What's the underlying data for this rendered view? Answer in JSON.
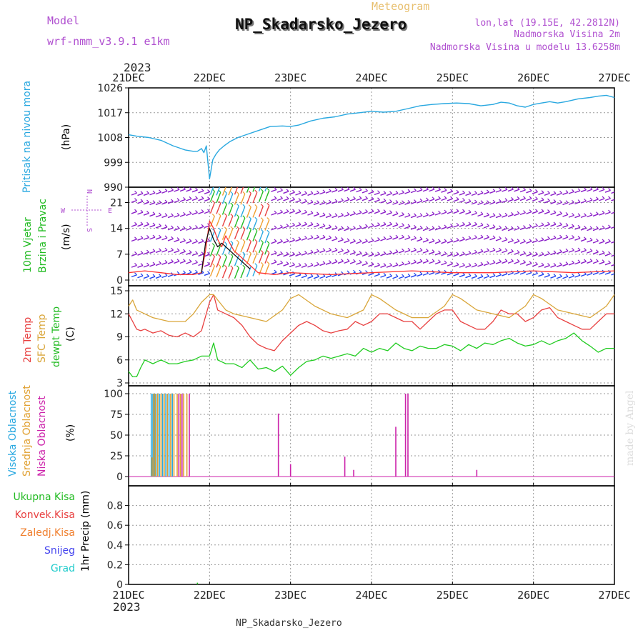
{
  "header": {
    "model_label": "Model",
    "model_name": "wrf-nmm_v3.9.1  e1km",
    "meteogram_label": "Meteogram",
    "station_title": "NP_Skadarsko_Jezero",
    "lonlat": "lon,lat (19.15E, 42.2812N)",
    "altitude": "Nadmorska Visina 2m",
    "model_altitude": "Nadmorska Visina u modelu 13.6258m",
    "year_top": "2023",
    "year_bottom": "2023",
    "footer_station": "NP_Skadarsko_Jezero",
    "credit": "made by Angel"
  },
  "colors": {
    "pressure": "#29a8e0",
    "wind_label": "#22bb22",
    "wind_arrow": "#8a1ec8",
    "wind_speed": "#ff3333",
    "t2m": "#e84040",
    "sfc": "#d9a63a",
    "dewpt": "#22cc22",
    "cloud_high": "#29a8e0",
    "cloud_mid": "#e0a030",
    "cloud_low": "#cc22aa",
    "precip_total": "#22bb22",
    "precip_conv": "#e84040",
    "precip_frozen": "#f08030",
    "snow": "#4444ee",
    "hail": "#22cccc",
    "title_purple": "#b050d0",
    "meteogram_gold": "#e8c070"
  },
  "chart_data": [
    {
      "type": "line",
      "panel": "pressure",
      "labels": [
        "Pritisak na nivou mora",
        "(hPa)"
      ],
      "x_ticks": [
        "21DEC",
        "22DEC",
        "23DEC",
        "24DEC",
        "25DEC",
        "26DEC",
        "27DEC"
      ],
      "x_days": [
        0,
        6
      ],
      "ylim": [
        990,
        1026
      ],
      "y_ticks": [
        "990",
        "999",
        "1008",
        "1017",
        "1026"
      ],
      "grid": true,
      "series": [
        {
          "x": [
            0,
            0.1,
            0.25,
            0.4,
            0.55,
            0.7,
            0.8,
            0.85,
            0.9,
            0.93,
            0.96,
            1.0,
            1.04,
            1.08,
            1.12,
            1.18,
            1.25,
            1.35,
            1.45,
            1.6,
            1.75,
            1.9,
            2.0,
            2.1,
            2.25,
            2.4,
            2.55,
            2.7,
            2.85,
            3.0,
            3.15,
            3.3,
            3.45,
            3.6,
            3.75,
            3.9,
            4.05,
            4.2,
            4.35,
            4.5,
            4.6,
            4.7,
            4.8,
            4.9,
            5.0,
            5.1,
            5.2,
            5.3,
            5.4,
            5.55,
            5.7,
            5.8,
            5.9,
            6.0
          ],
          "values": [
            1009,
            1008.5,
            1008,
            1007,
            1005,
            1003.5,
            1003,
            1003,
            1004,
            1002.5,
            1005,
            993,
            1000,
            1002,
            1003.5,
            1005,
            1006.5,
            1008,
            1009,
            1010.5,
            1012,
            1012.2,
            1012,
            1012.5,
            1014,
            1015,
            1015.5,
            1016.5,
            1017,
            1017.5,
            1017.2,
            1017.5,
            1018.5,
            1019.5,
            1020,
            1020.3,
            1020.5,
            1020.3,
            1019.5,
            1020,
            1020.8,
            1020.5,
            1019.5,
            1019,
            1020,
            1020.5,
            1021,
            1020.5,
            1021,
            1022,
            1022.5,
            1023,
            1023.3,
            1022.5
          ]
        }
      ]
    },
    {
      "type": "line",
      "panel": "wind",
      "labels": [
        "10m Vjetar",
        "Brzina i Pravac",
        "(m/s)"
      ],
      "direction_legend": [
        "N",
        "S",
        "W",
        "E"
      ],
      "ylim": [
        0,
        24
      ],
      "y_ticks": [
        "0",
        "7",
        "14",
        "21"
      ],
      "grid": true,
      "series": [
        {
          "name": "speed",
          "x": [
            0,
            0.2,
            0.4,
            0.6,
            0.8,
            0.9,
            0.95,
            1.0,
            1.05,
            1.1,
            1.15,
            1.2,
            1.3,
            1.4,
            1.5,
            1.6,
            1.8,
            2.0,
            2.5,
            3.0,
            3.5,
            4.0,
            4.5,
            5.0,
            5.5,
            6.0
          ],
          "values": [
            2,
            2.5,
            2,
            1.5,
            1.5,
            2,
            8,
            16,
            14,
            11,
            9,
            12,
            8,
            6,
            4,
            2,
            1.5,
            2,
            1.5,
            2,
            2.5,
            2,
            2,
            2.5,
            2,
            2.5
          ]
        },
        {
          "name": "gust",
          "x": [
            0.9,
            0.95,
            1.0,
            1.05,
            1.1,
            1.15,
            1.2,
            1.3,
            1.4,
            1.5
          ],
          "values": [
            2,
            10,
            14,
            11,
            9,
            10,
            9,
            7,
            5,
            3
          ]
        }
      ]
    },
    {
      "type": "line",
      "panel": "temperature",
      "labels": [
        "2m Temp",
        "SFC Temp",
        "dewpt Temp",
        "(C)"
      ],
      "ylim": [
        3,
        15
      ],
      "y_ticks": [
        "3",
        "6",
        "9",
        "12",
        "15"
      ],
      "grid": true,
      "series": [
        {
          "name": "2m Temp",
          "x": [
            0,
            0.05,
            0.1,
            0.15,
            0.2,
            0.3,
            0.4,
            0.5,
            0.6,
            0.7,
            0.8,
            0.9,
            1.0,
            1.05,
            1.1,
            1.2,
            1.3,
            1.4,
            1.5,
            1.6,
            1.7,
            1.8,
            1.9,
            2.0,
            2.1,
            2.2,
            2.3,
            2.4,
            2.5,
            2.6,
            2.7,
            2.8,
            2.9,
            3.0,
            3.1,
            3.2,
            3.3,
            3.4,
            3.5,
            3.6,
            3.7,
            3.8,
            3.9,
            4.0,
            4.1,
            4.2,
            4.3,
            4.4,
            4.5,
            4.6,
            4.7,
            4.8,
            4.9,
            5.0,
            5.1,
            5.2,
            5.3,
            5.4,
            5.5,
            5.6,
            5.7,
            5.8,
            5.9,
            6.0
          ],
          "values": [
            12,
            11,
            10,
            9.8,
            10,
            9.5,
            9.8,
            9.2,
            9,
            9.5,
            9,
            9.8,
            13.5,
            14.5,
            12.5,
            12,
            11.5,
            10.5,
            9,
            8,
            7.5,
            7.2,
            8.5,
            9.5,
            10.5,
            11,
            10.5,
            9.8,
            9.5,
            9.8,
            10,
            11,
            10.5,
            11,
            12,
            12,
            11.5,
            11,
            11,
            10,
            11,
            12,
            12.5,
            12.5,
            11,
            10.5,
            10,
            10,
            11,
            12.5,
            12,
            12,
            11,
            11.5,
            12.5,
            12.8,
            11.5,
            11,
            10.5,
            10,
            10,
            11,
            12,
            12
          ]
        },
        {
          "name": "SFC Temp",
          "x": [
            0,
            0.05,
            0.1,
            0.2,
            0.3,
            0.5,
            0.7,
            0.8,
            0.9,
            1.0,
            1.05,
            1.1,
            1.2,
            1.3,
            1.5,
            1.7,
            1.9,
            2.0,
            2.1,
            2.3,
            2.5,
            2.7,
            2.9,
            3.0,
            3.1,
            3.3,
            3.5,
            3.7,
            3.9,
            4.0,
            4.1,
            4.3,
            4.5,
            4.7,
            4.9,
            5.0,
            5.1,
            5.3,
            5.5,
            5.7,
            5.9,
            6.0
          ],
          "values": [
            13,
            13.8,
            12.5,
            12,
            11.5,
            11,
            11,
            12,
            13.5,
            14.5,
            14.5,
            13.8,
            12.5,
            12,
            11.5,
            11,
            12.5,
            14,
            14.5,
            13,
            12,
            11.5,
            12.5,
            14.5,
            14,
            12.5,
            11.5,
            11.5,
            13,
            14.5,
            14,
            12.5,
            12,
            11.5,
            13,
            14.5,
            14,
            12.5,
            12,
            11.5,
            13,
            14.5
          ]
        },
        {
          "name": "dewpt Temp",
          "x": [
            0,
            0.05,
            0.1,
            0.15,
            0.2,
            0.3,
            0.4,
            0.5,
            0.6,
            0.7,
            0.8,
            0.9,
            1.0,
            1.05,
            1.1,
            1.2,
            1.3,
            1.4,
            1.5,
            1.6,
            1.7,
            1.8,
            1.9,
            2.0,
            2.1,
            2.2,
            2.3,
            2.4,
            2.5,
            2.6,
            2.7,
            2.8,
            2.9,
            3.0,
            3.1,
            3.2,
            3.3,
            3.4,
            3.5,
            3.6,
            3.7,
            3.8,
            3.9,
            4.0,
            4.1,
            4.2,
            4.3,
            4.4,
            4.5,
            4.6,
            4.7,
            4.8,
            4.9,
            5.0,
            5.1,
            5.2,
            5.3,
            5.4,
            5.5,
            5.6,
            5.7,
            5.8,
            5.9,
            6.0
          ],
          "values": [
            4.5,
            3.8,
            3.8,
            5,
            6,
            5.5,
            6,
            5.5,
            5.5,
            5.8,
            6,
            6.5,
            6.5,
            8.2,
            6,
            5.5,
            5.5,
            5,
            6,
            4.8,
            5,
            4.5,
            5.2,
            4,
            5,
            5.8,
            6,
            6.5,
            6.2,
            6.5,
            6.8,
            6.5,
            7.5,
            7,
            7.5,
            7.2,
            8.2,
            7.5,
            7.2,
            7.8,
            7.5,
            7.5,
            8,
            7.8,
            7.2,
            8,
            7.5,
            8.2,
            8,
            8.5,
            8.8,
            8.2,
            7.8,
            8,
            8.5,
            8,
            8.5,
            8.8,
            9.5,
            8.5,
            7.8,
            7,
            7.5,
            7.5
          ]
        }
      ]
    },
    {
      "type": "bar",
      "panel": "cloud",
      "labels": [
        "Visoka Oblacnost",
        "Srednja Oblacnost",
        "Niska Oblacnost",
        "(%)"
      ],
      "ylim": [
        0,
        100
      ],
      "y_ticks": [
        "0",
        "25",
        "50",
        "75",
        "100"
      ],
      "grid": true,
      "series": [
        {
          "name": "Visoka Oblacnost",
          "x": [
            0.28,
            0.3,
            0.32,
            0.34,
            0.38,
            0.42,
            0.46,
            0.5,
            0.54
          ],
          "values": [
            100,
            100,
            100,
            100,
            100,
            100,
            100,
            100,
            100
          ]
        },
        {
          "name": "Srednja Oblacnost",
          "x": [
            0.29,
            0.31,
            0.33,
            0.36,
            0.4,
            0.44,
            0.48,
            0.52,
            0.56,
            0.6,
            0.64,
            0.68,
            0.72
          ],
          "values": [
            23,
            100,
            100,
            100,
            100,
            100,
            100,
            100,
            100,
            100,
            100,
            100,
            100
          ]
        },
        {
          "name": "Niska Oblacnost",
          "x": [
            0.62,
            0.66,
            0.75,
            1.85,
            2.0,
            2.67,
            2.78,
            3.3,
            3.42,
            3.45,
            4.3
          ],
          "values": [
            100,
            100,
            100,
            76,
            15,
            24,
            8,
            60,
            100,
            100,
            8
          ]
        }
      ]
    },
    {
      "type": "bar",
      "panel": "precip",
      "labels": [
        "Ukupna Kisa",
        "Konvek.Kisa",
        "Zaledj.Kisa",
        "Snijeg",
        "Grad",
        "1hr Precip (mm)"
      ],
      "ylim": [
        0,
        1.0
      ],
      "y_ticks": [
        "0",
        "0.2",
        "0.4",
        "0.6",
        "0.8"
      ],
      "grid": true,
      "series": [
        {
          "name": "Ukupna Kisa",
          "x": [
            0.85
          ],
          "values": [
            0.01
          ]
        }
      ]
    }
  ]
}
